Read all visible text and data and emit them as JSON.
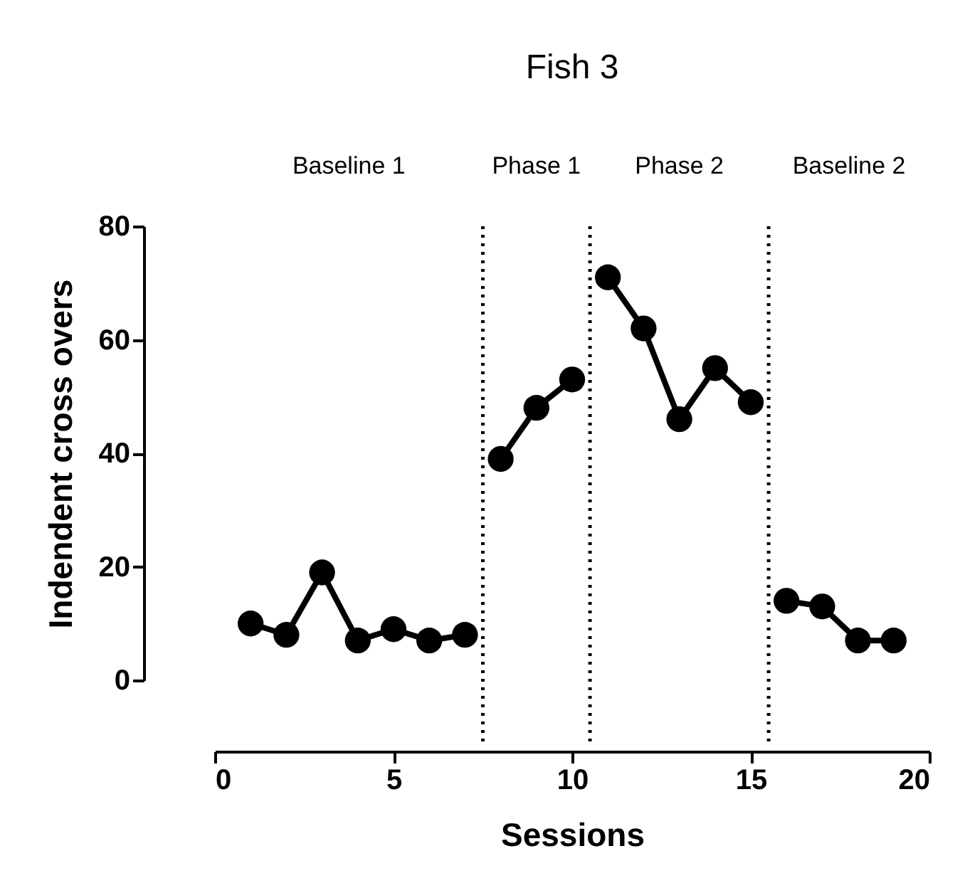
{
  "chart_data": {
    "type": "line",
    "title": "Fish 3",
    "xlabel": "Sessions",
    "ylabel": "Indendent cross overs",
    "xlim": [
      0,
      20
    ],
    "xticks": [
      0,
      5,
      10,
      15,
      20
    ],
    "ylim": [
      0,
      80
    ],
    "yticks": [
      0,
      20,
      40,
      60,
      80
    ],
    "grid": false,
    "marker": "circle",
    "line_style": "solid",
    "series": [
      {
        "color": "#000000",
        "x": [
          1,
          2,
          3,
          4,
          5,
          6,
          7
        ],
        "values": [
          10,
          8,
          19,
          7,
          9,
          7,
          8
        ]
      },
      {
        "color": "#000000",
        "x": [
          8,
          9,
          10
        ],
        "values": [
          39,
          48,
          53
        ]
      },
      {
        "color": "#000000",
        "x": [
          11,
          12,
          13,
          14,
          15
        ],
        "values": [
          71,
          62,
          46,
          55,
          49
        ]
      },
      {
        "color": "#000000",
        "x": [
          16,
          17,
          18,
          19
        ],
        "values": [
          14,
          13,
          7,
          7
        ]
      }
    ],
    "ref_lines": [
      {
        "axis": "x",
        "value": 7.5,
        "line_style": "dotted",
        "color": "#000000"
      },
      {
        "axis": "x",
        "value": 10.5,
        "line_style": "dotted",
        "color": "#000000"
      },
      {
        "axis": "x",
        "value": 15.5,
        "line_style": "dotted",
        "color": "#000000"
      }
    ],
    "annotations": [
      "Baseline 1",
      "Phase 1",
      "Phase 2",
      "Baseline 2"
    ]
  }
}
